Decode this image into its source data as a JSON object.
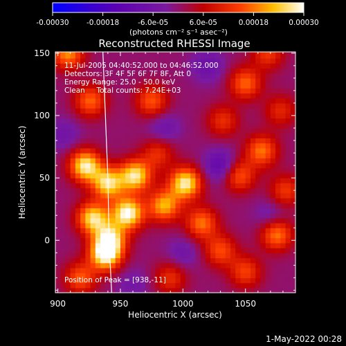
{
  "chart_data": {
    "type": "heatmap",
    "title": "Reconstructed RHESSI Image",
    "xlabel": "Heliocentric X (arcsec)",
    "ylabel": "Heliocentric Y (arcsec)",
    "xlim": [
      898,
      1090
    ],
    "ylim": [
      -42,
      151
    ],
    "xticks": [
      900,
      950,
      1000,
      1050
    ],
    "yticks": [
      0,
      50,
      100,
      150
    ],
    "colorbar": {
      "unit_label": "(photons cm⁻² s⁻¹ asec⁻²)",
      "range": [
        -0.0003,
        0.0003
      ],
      "tick_values": [
        -0.0003,
        -0.00018,
        -6e-05,
        6e-05,
        0.00018,
        0.0003
      ],
      "tick_labels": [
        "-0.00030",
        "-0.00018",
        "-6.0e-05",
        "6.0e-05",
        "0.00018",
        "0.00030"
      ]
    },
    "annotations": [
      "11-Jul-2005 04:40:52.000 to 04:46:52.000",
      "Detectors: 3F 4F 5F 6F 7F 8F, Att 0",
      "Energy Range: 25.0 - 50.0 keV",
      "Clean     Total counts: 7.24E+03"
    ],
    "peak_label": "Position of Peak = [938,-11]",
    "peak": [
      938,
      -11
    ],
    "hotspots": [
      {
        "x": 908,
        "y": 150,
        "value": 0.0002
      },
      {
        "x": 926,
        "y": 112,
        "value": 0.00017
      },
      {
        "x": 975,
        "y": 112,
        "value": 0.00016
      },
      {
        "x": 1050,
        "y": 126,
        "value": 0.00017
      },
      {
        "x": 1032,
        "y": 96,
        "value": 0.00012
      },
      {
        "x": 1078,
        "y": 104,
        "value": 0.00011
      },
      {
        "x": 922,
        "y": 60,
        "value": 0.00028
      },
      {
        "x": 940,
        "y": 46,
        "value": 0.00026
      },
      {
        "x": 962,
        "y": 52,
        "value": 0.00027
      },
      {
        "x": 956,
        "y": 22,
        "value": 0.0003
      },
      {
        "x": 928,
        "y": 18,
        "value": 0.00026
      },
      {
        "x": 942,
        "y": 2,
        "value": 0.00023
      },
      {
        "x": 938,
        "y": -11,
        "value": 0.0003
      },
      {
        "x": 1002,
        "y": 46,
        "value": 0.00028
      },
      {
        "x": 985,
        "y": 28,
        "value": 0.00022
      },
      {
        "x": 1015,
        "y": 14,
        "value": 0.00018
      },
      {
        "x": 1063,
        "y": 72,
        "value": 0.00018
      },
      {
        "x": 1045,
        "y": 52,
        "value": 0.00016
      },
      {
        "x": 1082,
        "y": 40,
        "value": 0.00013
      },
      {
        "x": 1075,
        "y": 5,
        "value": 0.00019
      },
      {
        "x": 1030,
        "y": -8,
        "value": 0.00015
      },
      {
        "x": 1050,
        "y": -25,
        "value": 0.00014
      },
      {
        "x": 990,
        "y": -30,
        "value": 0.00012
      },
      {
        "x": 918,
        "y": -30,
        "value": 0.00016
      },
      {
        "x": 980,
        "y": 70,
        "value": 0.00012
      },
      {
        "x": 1068,
        "y": 150,
        "value": 0.00013
      }
    ],
    "coldspots": [
      {
        "x": 1030,
        "y": 60,
        "value": -0.00012
      },
      {
        "x": 1020,
        "y": 140,
        "value": -8e-05
      },
      {
        "x": 985,
        "y": 90,
        "value": -7e-05
      },
      {
        "x": 905,
        "y": 85,
        "value": -6e-05
      },
      {
        "x": 1000,
        "y": -10,
        "value": -6e-05
      },
      {
        "x": 1070,
        "y": 20,
        "value": -6e-05
      },
      {
        "x": 960,
        "y": -35,
        "value": -5e-05
      }
    ],
    "limb_curve": [
      [
        936,
        151
      ],
      [
        938,
        100
      ],
      [
        940,
        50
      ],
      [
        941,
        0
      ],
      [
        943,
        -42
      ]
    ],
    "grid": false
  },
  "footer_date": "1-May-2022 00:28"
}
